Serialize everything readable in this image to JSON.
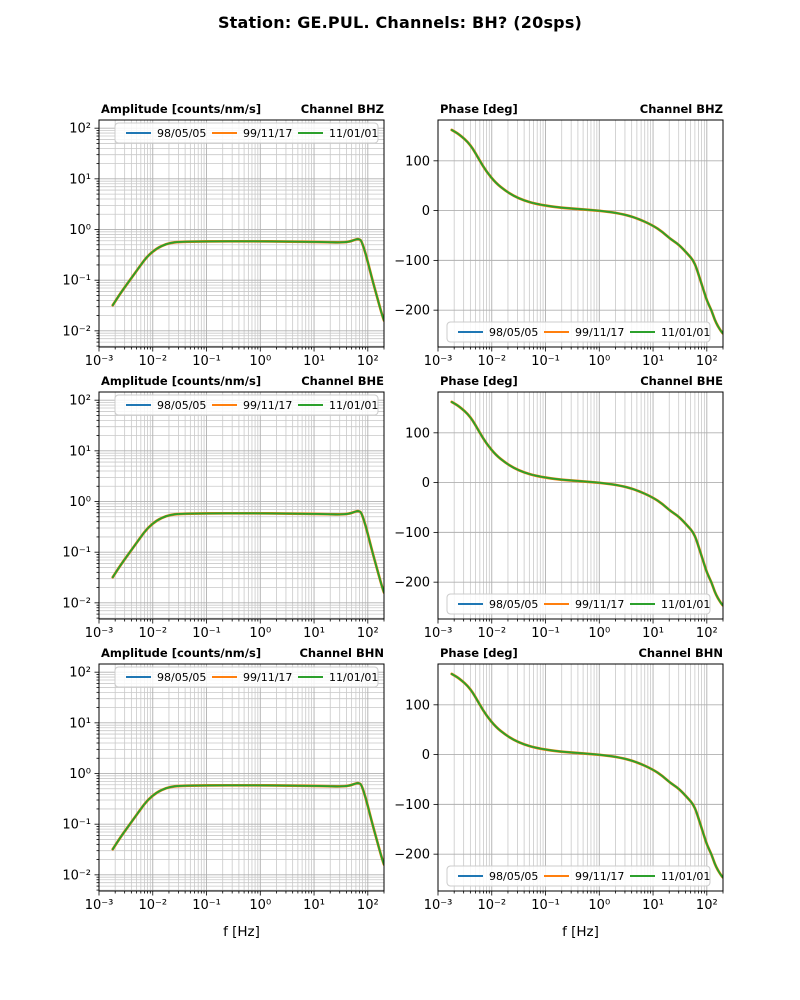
{
  "figure": {
    "suptitle": "Station: GE.PUL. Channels: BH? (20sps)",
    "background": "#ffffff"
  },
  "chart_data": {
    "type": "line",
    "layout": "3 rows x 2 cols; rows = channels BHZ/BHE/BHN, left col = amplitude response (log-log), right col = phase response (semilog-x); grid on (major+minor)",
    "channels": [
      "BHZ",
      "BHE",
      "BHN"
    ],
    "xlabel": "f [Hz]",
    "xscale": "log",
    "xlim": [
      0.001,
      200
    ],
    "xtick_values": [
      0.001,
      0.01,
      0.1,
      1,
      10,
      100
    ],
    "xtick_labels": [
      "10⁻³",
      "10⁻²",
      "10⁻¹",
      "10⁰",
      "10¹",
      "10²"
    ],
    "grid": {
      "major_color": "#b0b0b0",
      "minor_color": "#c9c9c9"
    },
    "legend": {
      "entries": [
        {
          "label": "98/05/05",
          "color": "#1f77b4"
        },
        {
          "label": "99/11/17",
          "color": "#ff7f0e"
        },
        {
          "label": "11/01/01",
          "color": "#2ca02c"
        }
      ],
      "amplitude_position": "upper center inside axes",
      "phase_position": "lower center inside axes",
      "note": "responses for all three epochs coincide; green (11/01/01) is drawn on top with a thin orange fringe visible"
    },
    "columns": [
      {
        "key": "amplitude",
        "title": "Amplitude [counts/nm/s]",
        "yscale": "log",
        "ylim": [
          0.0048,
          145
        ],
        "ytick_values": [
          100,
          10,
          1,
          0.1,
          0.01
        ],
        "ytick_labels": [
          "10²",
          "10¹",
          "10⁰",
          "10⁻¹",
          "10⁻²"
        ]
      },
      {
        "key": "phase",
        "title": "Phase [deg]",
        "yscale": "linear",
        "ylim": [
          -274,
          182
        ],
        "ytick_values": [
          100,
          0,
          -100,
          -200
        ],
        "ytick_labels": [
          "100",
          "0",
          "−100",
          "−200"
        ]
      }
    ],
    "frequencies_hz": [
      0.0018,
      0.0025,
      0.004,
      0.006,
      0.008,
      0.012,
      0.018,
      0.025,
      0.04,
      0.07,
      0.15,
      0.4,
      1,
      2.5,
      5,
      10,
      15,
      21,
      30,
      44,
      56,
      64,
      70,
      76,
      90,
      102,
      122,
      140,
      160,
      186,
      200
    ],
    "amplitude_counts_per_nm_s": [
      0.032,
      0.055,
      0.11,
      0.2,
      0.3,
      0.43,
      0.52,
      0.56,
      0.575,
      0.58,
      0.585,
      0.585,
      0.585,
      0.58,
      0.575,
      0.57,
      0.565,
      0.56,
      0.555,
      0.57,
      0.62,
      0.65,
      0.64,
      0.6,
      0.35,
      0.21,
      0.1,
      0.059,
      0.035,
      0.02,
      0.016
    ],
    "phase_deg": [
      162,
      153,
      133,
      100,
      78,
      55,
      40,
      30,
      20,
      13,
      7,
      3,
      0,
      -6,
      -15,
      -30,
      -43,
      -57,
      -68,
      -87,
      -100,
      -115,
      -128,
      -140,
      -165,
      -183,
      -200,
      -219,
      -232,
      -243,
      -247
    ]
  }
}
